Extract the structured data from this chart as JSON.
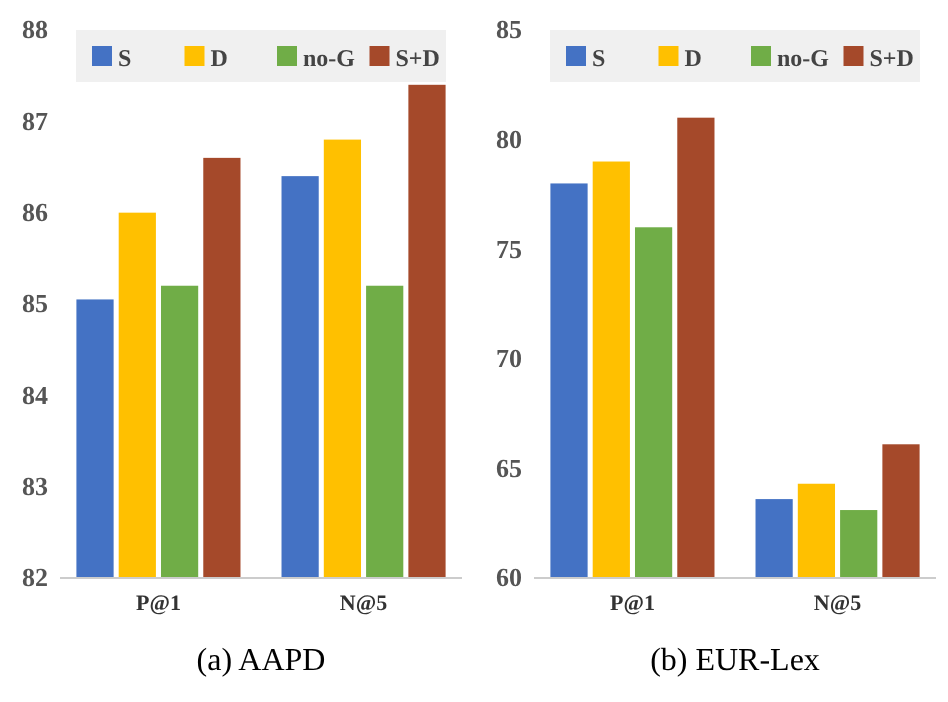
{
  "chart_data": [
    {
      "type": "bar",
      "xlabel": "(a)  AAPD",
      "categories": [
        "P@1",
        "N@5"
      ],
      "ylim": [
        82,
        88
      ],
      "yticks": [
        82,
        83,
        84,
        85,
        86,
        87,
        88
      ],
      "grid": false,
      "legend": "top",
      "series": [
        {
          "name": "S",
          "color": "#4472c4",
          "values": [
            85.05,
            86.4
          ]
        },
        {
          "name": "D",
          "color": "#ffc000",
          "values": [
            86.0,
            86.8
          ]
        },
        {
          "name": "no-G",
          "color": "#70ad47",
          "values": [
            85.2,
            85.2
          ]
        },
        {
          "name": "S+D",
          "color": "#a5492a",
          "values": [
            86.6,
            87.4
          ]
        }
      ]
    },
    {
      "type": "bar",
      "xlabel": "(b)  EUR-Lex",
      "categories": [
        "P@1",
        "N@5"
      ],
      "ylim": [
        60,
        85
      ],
      "yticks": [
        60,
        65,
        70,
        75,
        80,
        85
      ],
      "grid": false,
      "legend": "top",
      "series": [
        {
          "name": "S",
          "color": "#4472c4",
          "values": [
            78,
            63.6
          ]
        },
        {
          "name": "D",
          "color": "#ffc000",
          "values": [
            79,
            64.3
          ]
        },
        {
          "name": "no-G",
          "color": "#70ad47",
          "values": [
            76,
            63.1
          ]
        },
        {
          "name": "S+D",
          "color": "#a5492a",
          "values": [
            81,
            66.1
          ]
        }
      ]
    }
  ]
}
